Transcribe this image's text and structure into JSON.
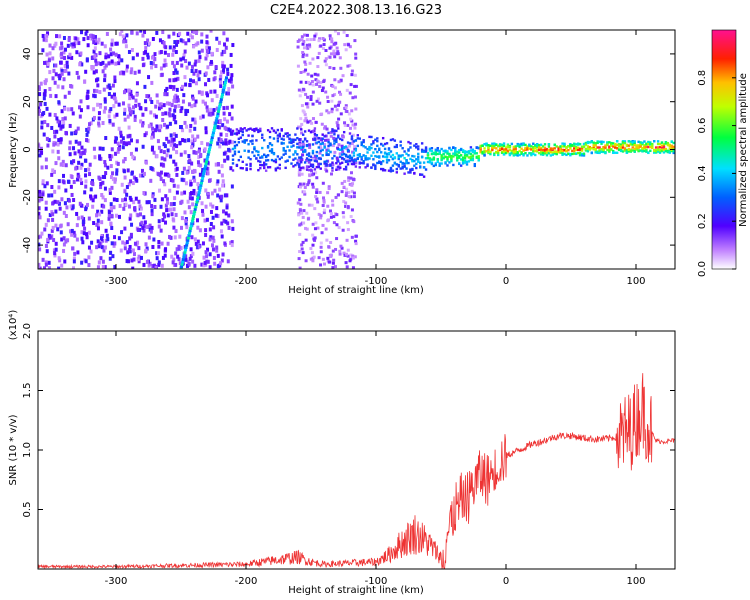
{
  "figure_title": "C2E4.2022.308.13.16.G23",
  "colors": {
    "snr_line": "#ee3333",
    "axis": "#000000",
    "background": "#ffffff"
  },
  "chart_data": [
    {
      "type": "heatmap",
      "title": "C2E4.2022.308.13.16.G23",
      "xlabel": "Height of straight line (km)",
      "ylabel": "Frequency (Hz)",
      "xlim": [
        -360,
        130
      ],
      "ylim": [
        -50,
        50
      ],
      "xticks": [
        -300,
        -200,
        -100,
        0,
        100
      ],
      "yticks": [
        -40,
        -20,
        0,
        20,
        40
      ],
      "colormap": "rainbow (white, purple, blue, cyan, green, yellow, red, magenta)",
      "colorbar": {
        "label": "Normalized spectral amplitude",
        "range": [
          0.0,
          1.0
        ],
        "ticks": [
          "0.0",
          "0.2",
          "0.4",
          "0.6",
          "0.8"
        ]
      },
      "features": [
        {
          "name": "scattered noise",
          "x_range": [
            -360,
            -210
          ],
          "y_range": [
            -50,
            50
          ],
          "amplitude": 0.15
        },
        {
          "name": "diagonal streak",
          "from": [
            -250,
            -50
          ],
          "to": [
            -215,
            30
          ],
          "amplitude": 0.3
        },
        {
          "name": "noise band",
          "x_range": [
            -160,
            -115
          ],
          "y_range": [
            -50,
            50
          ],
          "amplitude": 0.1
        },
        {
          "name": "signal line",
          "x_range": [
            -210,
            130
          ],
          "y": 0,
          "amplitude_range": [
            0.3,
            0.95
          ]
        }
      ]
    },
    {
      "type": "line",
      "xlabel": "Height of straight line (km)",
      "ylabel": "SNR (10 * v/v)",
      "scale_label": "(x10⁴)",
      "xlim": [
        -360,
        130
      ],
      "ylim": [
        0,
        2.0
      ],
      "xticks": [
        -300,
        -200,
        -100,
        0,
        100
      ],
      "yticks": [
        "0.5",
        "1.0",
        "1.5",
        "2.0"
      ],
      "series": [
        {
          "x": [
            -360,
            -300,
            -250,
            -200,
            -180,
            -160,
            -150,
            -140,
            -120,
            -100,
            -90,
            -80,
            -70,
            -60,
            -50,
            -45,
            -40,
            -35,
            -30,
            -25,
            -20,
            -15,
            -10,
            -5,
            0,
            10,
            20,
            30,
            40,
            50,
            60,
            70,
            80,
            90,
            95,
            100,
            105,
            110,
            115,
            120,
            130
          ],
          "y": [
            0.02,
            0.02,
            0.03,
            0.04,
            0.07,
            0.1,
            0.06,
            0.04,
            0.05,
            0.06,
            0.12,
            0.22,
            0.3,
            0.22,
            0.1,
            0.3,
            0.45,
            0.55,
            0.62,
            0.7,
            0.8,
            0.75,
            0.82,
            0.9,
            0.95,
            1.0,
            1.05,
            1.08,
            1.12,
            1.12,
            1.1,
            1.09,
            1.1,
            1.12,
            1.15,
            1.25,
            1.35,
            1.2,
            1.08,
            1.07,
            1.08
          ]
        }
      ]
    }
  ]
}
